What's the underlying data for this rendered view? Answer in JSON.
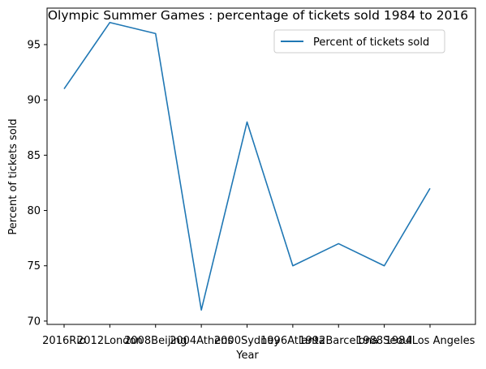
{
  "chart_data": {
    "type": "line",
    "title": "Olympic Summer Games : percentage of tickets sold 1984 to 2016",
    "xlabel": "Year",
    "ylabel": "Percent of tickets sold",
    "categories": [
      "2016Rio",
      "2012London",
      "2008Beijing",
      "2004Athens",
      "2000Sydney",
      "1996Atlanta",
      "1992Barcelona",
      "1988Seoul",
      "1984Los Angeles"
    ],
    "series": [
      {
        "name": "Percent of tickets sold",
        "values": [
          91,
          97,
          96,
          71,
          88,
          75,
          77,
          75,
          82
        ],
        "color": "#1f77b4"
      }
    ],
    "ylim": [
      69.7,
      98.3
    ],
    "yticks": [
      70,
      75,
      80,
      85,
      90,
      95
    ],
    "grid": false,
    "legend_position": "top-right"
  }
}
